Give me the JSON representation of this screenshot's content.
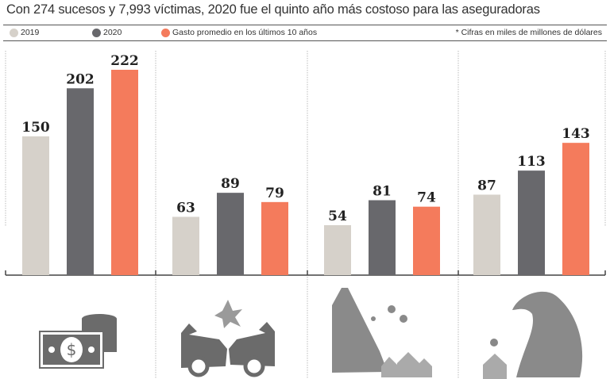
{
  "title": "Con 274 sucesos y 7,993 víctimas, 2020 fue el quinto año más costoso para las aseguradoras",
  "legend": [
    {
      "label": "2019",
      "color": "#d6d1ca"
    },
    {
      "label": "2020",
      "color": "#68686c"
    },
    {
      "label": "Gasto promedio en los últimos 10 años",
      "color": "#f47b5c"
    }
  ],
  "note": "* Cifras en miles de millones de dólares",
  "chart_data": {
    "type": "bar",
    "categories": [
      "money-icon",
      "car-crash-icon",
      "landslide-icon",
      "tsunami-icon"
    ],
    "series": [
      {
        "name": "2019",
        "values": [
          150,
          63,
          54,
          87
        ]
      },
      {
        "name": "2020",
        "values": [
          202,
          89,
          81,
          113
        ]
      },
      {
        "name": "Gasto promedio en los últimos 10 años",
        "values": [
          222,
          79,
          74,
          143
        ]
      }
    ],
    "ylim": [
      0,
      240
    ],
    "grid": false,
    "legend_position": "top"
  }
}
